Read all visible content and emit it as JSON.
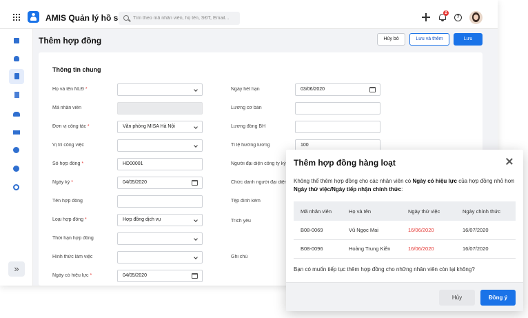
{
  "app": {
    "title": "AMIS Quản lý hồ sơ",
    "search_placeholder": "Tìm theo mã nhân viên, họ tên, SĐT, Email...",
    "notification_count": "2",
    "help_label": "?"
  },
  "sidebar": {
    "items": [
      "home-icon",
      "user-icon",
      "document-icon",
      "clipboard-icon",
      "group-icon",
      "org-icon",
      "info-icon",
      "chart-icon",
      "gear-icon"
    ],
    "active_index": 2,
    "collapse_label": "»",
    "accent": "#2f6fd0"
  },
  "header": {
    "page_title": "Thêm hợp đồng",
    "cancel_label": "Hủy bỏ",
    "save_add_label": "Lưu và thêm",
    "save_label": "Lưu"
  },
  "form": {
    "section_title": "Thông tin chung",
    "left": [
      {
        "label": "Họ và tên NLĐ",
        "required": "*",
        "value": ""
      },
      {
        "label": "Mã nhân viên",
        "required": "",
        "value": ""
      },
      {
        "label": "Đơn vị công tác",
        "required": "*",
        "value": "Văn phòng MISA Hà Nội"
      },
      {
        "label": "Vị trí công việc",
        "required": "",
        "value": ""
      },
      {
        "label": "Số hợp đồng",
        "required": "*",
        "value": "HD00001"
      },
      {
        "label": "Ngày ký",
        "required": "*",
        "value": "04/05/2020"
      },
      {
        "label": "Tên hợp đồng",
        "required": "",
        "value": ""
      },
      {
        "label": "Loại hợp đồng",
        "required": "*",
        "value": "Hợp đồng dịch vụ"
      },
      {
        "label": "Thời hạn hợp đồng",
        "required": "",
        "value": ""
      },
      {
        "label": "Hình thức làm việc",
        "required": "",
        "value": ""
      },
      {
        "label": "Ngày có hiệu lực",
        "required": "*",
        "value": "04/05/2020"
      }
    ],
    "right": [
      {
        "label": "Ngày hết hạn",
        "value": "03/06/2020"
      },
      {
        "label": "Lương cơ bản",
        "value": ""
      },
      {
        "label": "Lương đóng BH",
        "value": ""
      },
      {
        "label": "Tỉ lệ hưởng lương",
        "value": "100"
      },
      {
        "label": "Người đại diện công ty ký",
        "value": ""
      },
      {
        "label": "Chức danh người đại diện",
        "value": ""
      },
      {
        "label": "Tệp đính kèm",
        "value": ""
      },
      {
        "label": "Trích yếu",
        "value": ""
      },
      {
        "label": "Ghi chú",
        "value": ""
      }
    ]
  },
  "dialog": {
    "title": "Thêm hợp đồng hàng loạt",
    "message_part1": "Không thể thêm hợp đồng cho các nhân viên có ",
    "message_bold1": "Ngày có hiệu lực",
    "message_part2": " của hợp đồng nhỏ hơn ",
    "message_bold2": "Ngày thử việc/Ngày tiếp nhận chính thức",
    "message_part3": ":",
    "columns": [
      "Mã nhân viên",
      "Họ và tên",
      "Ngày thử việc",
      "Ngày chính thức"
    ],
    "rows": [
      {
        "id": "B08-0069",
        "name": "Vũ Ngọc Mai",
        "probation": "16/06/2020",
        "official": "16/07/2020"
      },
      {
        "id": "B08-0096",
        "name": "Hoàng Trung Kiên",
        "probation": "16/06/2020",
        "official": "16/07/2020"
      }
    ],
    "question": "Bạn có muốn tiếp tục thêm hợp đồng cho những nhân viên còn lại không?",
    "cancel_label": "Hủy",
    "ok_label": "Đồng ý",
    "late_color": "#e53935",
    "primary_color": "#1a73e8"
  }
}
